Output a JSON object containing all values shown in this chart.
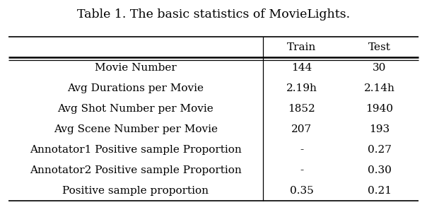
{
  "title": "Table 1. The basic statistics of MovieLights.",
  "columns": [
    "",
    "Train",
    "Test"
  ],
  "rows": [
    [
      "Movie Number",
      "144",
      "30"
    ],
    [
      "Avg Durations per Movie",
      "2.19h",
      "2.14h"
    ],
    [
      "Avg Shot Number per Movie",
      "1852",
      "1940"
    ],
    [
      "Avg Scene Number per Movie",
      "207",
      "193"
    ],
    [
      "Annotator1 Positive sample Proportion",
      "-",
      "0.27"
    ],
    [
      "Annotator2 Positive sample Proportion",
      "-",
      "0.30"
    ],
    [
      "Positive sample proportion",
      "0.35",
      "0.21"
    ]
  ],
  "title_fontsize": 12.5,
  "header_fontsize": 11,
  "cell_fontsize": 11,
  "bg_color": "#ffffff",
  "text_color": "#000000"
}
